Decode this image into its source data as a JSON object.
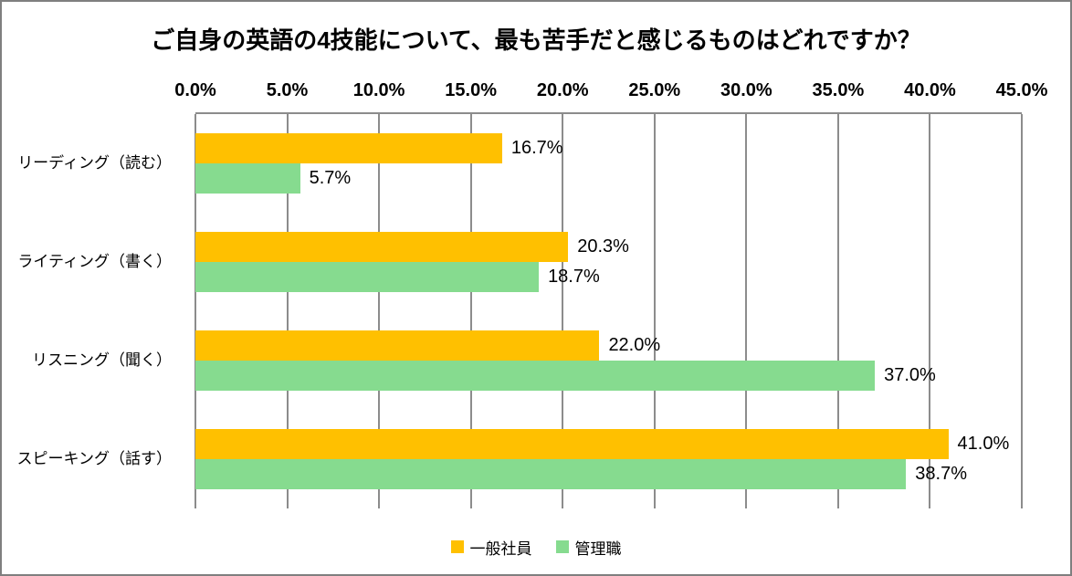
{
  "title": "ご自身の英語の4技能について、最も苦手だと感じるものはどれですか？",
  "chart_data": {
    "type": "bar",
    "orientation": "horizontal",
    "title": "ご自身の英語の4技能について、最も苦手だと感じるものはどれですか？",
    "categories": [
      "リーディング（読む）",
      "ライティング（書く）",
      "リスニング（聞く）",
      "スピーキング（話す）"
    ],
    "series": [
      {
        "name": "一般社員",
        "color": "#FFC000",
        "values": [
          16.7,
          20.3,
          22.0,
          41.0
        ]
      },
      {
        "name": "管理職",
        "color": "#86DB8F",
        "values": [
          5.7,
          18.7,
          37.0,
          38.7
        ]
      }
    ],
    "data_labels": [
      [
        "16.7%",
        "20.3%",
        "22.0%",
        "41.0%"
      ],
      [
        "5.7%",
        "18.7%",
        "37.0%",
        "38.7%"
      ]
    ],
    "value_suffix": "%",
    "xlim": [
      0,
      45
    ],
    "x_ticks": [
      "0.0%",
      "5.0%",
      "10.0%",
      "15.0%",
      "20.0%",
      "25.0%",
      "30.0%",
      "35.0%",
      "40.0%",
      "45.0%"
    ],
    "axis_labels_position": "top",
    "legend_position": "bottom",
    "gridlines": true,
    "gridline_color": "#8c8c8c"
  }
}
